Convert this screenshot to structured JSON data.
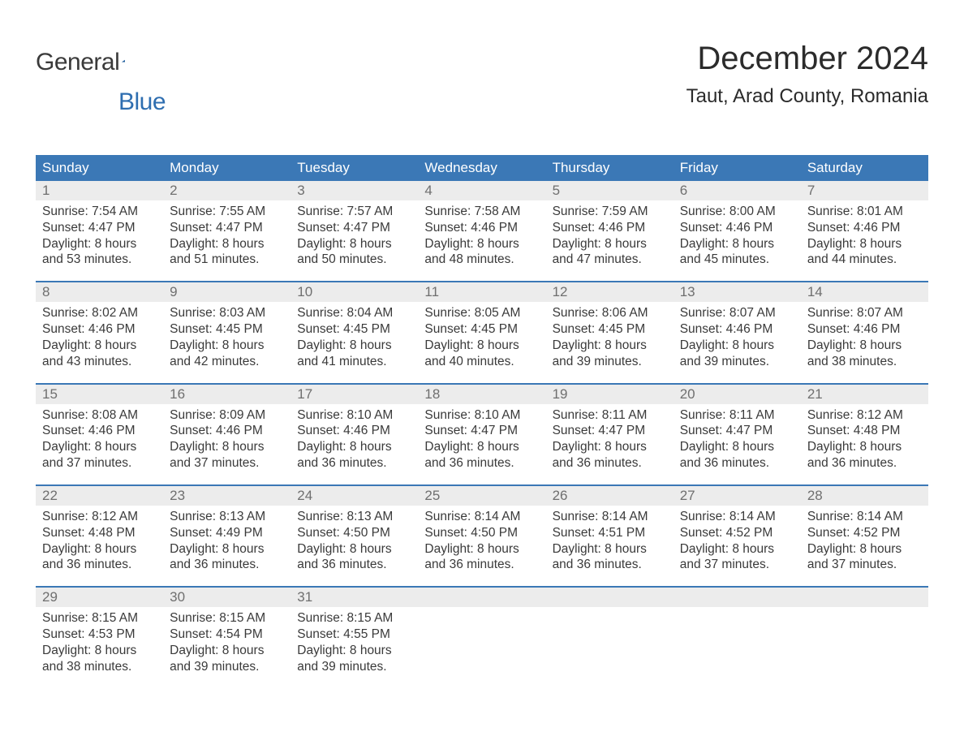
{
  "logo": {
    "part1": "General",
    "part2": "Blue",
    "flag_color": "#2e6eb0"
  },
  "title": {
    "month": "December 2024",
    "location": "Taut, Arad County, Romania"
  },
  "colors": {
    "header_bg": "#3b78b6",
    "header_text": "#ffffff",
    "daynum_bg": "#ececec",
    "daynum_text": "#6f6f6f",
    "body_text": "#3a3a3a",
    "week_border": "#3b78b6"
  },
  "weekdays": [
    "Sunday",
    "Monday",
    "Tuesday",
    "Wednesday",
    "Thursday",
    "Friday",
    "Saturday"
  ],
  "labels": {
    "sunrise": "Sunrise:",
    "sunset": "Sunset:",
    "daylight": "Daylight:"
  },
  "weeks": [
    [
      {
        "num": "1",
        "sunrise": "7:54 AM",
        "sunset": "4:47 PM",
        "dl1": "8 hours",
        "dl2": "and 53 minutes."
      },
      {
        "num": "2",
        "sunrise": "7:55 AM",
        "sunset": "4:47 PM",
        "dl1": "8 hours",
        "dl2": "and 51 minutes."
      },
      {
        "num": "3",
        "sunrise": "7:57 AM",
        "sunset": "4:47 PM",
        "dl1": "8 hours",
        "dl2": "and 50 minutes."
      },
      {
        "num": "4",
        "sunrise": "7:58 AM",
        "sunset": "4:46 PM",
        "dl1": "8 hours",
        "dl2": "and 48 minutes."
      },
      {
        "num": "5",
        "sunrise": "7:59 AM",
        "sunset": "4:46 PM",
        "dl1": "8 hours",
        "dl2": "and 47 minutes."
      },
      {
        "num": "6",
        "sunrise": "8:00 AM",
        "sunset": "4:46 PM",
        "dl1": "8 hours",
        "dl2": "and 45 minutes."
      },
      {
        "num": "7",
        "sunrise": "8:01 AM",
        "sunset": "4:46 PM",
        "dl1": "8 hours",
        "dl2": "and 44 minutes."
      }
    ],
    [
      {
        "num": "8",
        "sunrise": "8:02 AM",
        "sunset": "4:46 PM",
        "dl1": "8 hours",
        "dl2": "and 43 minutes."
      },
      {
        "num": "9",
        "sunrise": "8:03 AM",
        "sunset": "4:45 PM",
        "dl1": "8 hours",
        "dl2": "and 42 minutes."
      },
      {
        "num": "10",
        "sunrise": "8:04 AM",
        "sunset": "4:45 PM",
        "dl1": "8 hours",
        "dl2": "and 41 minutes."
      },
      {
        "num": "11",
        "sunrise": "8:05 AM",
        "sunset": "4:45 PM",
        "dl1": "8 hours",
        "dl2": "and 40 minutes."
      },
      {
        "num": "12",
        "sunrise": "8:06 AM",
        "sunset": "4:45 PM",
        "dl1": "8 hours",
        "dl2": "and 39 minutes."
      },
      {
        "num": "13",
        "sunrise": "8:07 AM",
        "sunset": "4:46 PM",
        "dl1": "8 hours",
        "dl2": "and 39 minutes."
      },
      {
        "num": "14",
        "sunrise": "8:07 AM",
        "sunset": "4:46 PM",
        "dl1": "8 hours",
        "dl2": "and 38 minutes."
      }
    ],
    [
      {
        "num": "15",
        "sunrise": "8:08 AM",
        "sunset": "4:46 PM",
        "dl1": "8 hours",
        "dl2": "and 37 minutes."
      },
      {
        "num": "16",
        "sunrise": "8:09 AM",
        "sunset": "4:46 PM",
        "dl1": "8 hours",
        "dl2": "and 37 minutes."
      },
      {
        "num": "17",
        "sunrise": "8:10 AM",
        "sunset": "4:46 PM",
        "dl1": "8 hours",
        "dl2": "and 36 minutes."
      },
      {
        "num": "18",
        "sunrise": "8:10 AM",
        "sunset": "4:47 PM",
        "dl1": "8 hours",
        "dl2": "and 36 minutes."
      },
      {
        "num": "19",
        "sunrise": "8:11 AM",
        "sunset": "4:47 PM",
        "dl1": "8 hours",
        "dl2": "and 36 minutes."
      },
      {
        "num": "20",
        "sunrise": "8:11 AM",
        "sunset": "4:47 PM",
        "dl1": "8 hours",
        "dl2": "and 36 minutes."
      },
      {
        "num": "21",
        "sunrise": "8:12 AM",
        "sunset": "4:48 PM",
        "dl1": "8 hours",
        "dl2": "and 36 minutes."
      }
    ],
    [
      {
        "num": "22",
        "sunrise": "8:12 AM",
        "sunset": "4:48 PM",
        "dl1": "8 hours",
        "dl2": "and 36 minutes."
      },
      {
        "num": "23",
        "sunrise": "8:13 AM",
        "sunset": "4:49 PM",
        "dl1": "8 hours",
        "dl2": "and 36 minutes."
      },
      {
        "num": "24",
        "sunrise": "8:13 AM",
        "sunset": "4:50 PM",
        "dl1": "8 hours",
        "dl2": "and 36 minutes."
      },
      {
        "num": "25",
        "sunrise": "8:14 AM",
        "sunset": "4:50 PM",
        "dl1": "8 hours",
        "dl2": "and 36 minutes."
      },
      {
        "num": "26",
        "sunrise": "8:14 AM",
        "sunset": "4:51 PM",
        "dl1": "8 hours",
        "dl2": "and 36 minutes."
      },
      {
        "num": "27",
        "sunrise": "8:14 AM",
        "sunset": "4:52 PM",
        "dl1": "8 hours",
        "dl2": "and 37 minutes."
      },
      {
        "num": "28",
        "sunrise": "8:14 AM",
        "sunset": "4:52 PM",
        "dl1": "8 hours",
        "dl2": "and 37 minutes."
      }
    ],
    [
      {
        "num": "29",
        "sunrise": "8:15 AM",
        "sunset": "4:53 PM",
        "dl1": "8 hours",
        "dl2": "and 38 minutes."
      },
      {
        "num": "30",
        "sunrise": "8:15 AM",
        "sunset": "4:54 PM",
        "dl1": "8 hours",
        "dl2": "and 39 minutes."
      },
      {
        "num": "31",
        "sunrise": "8:15 AM",
        "sunset": "4:55 PM",
        "dl1": "8 hours",
        "dl2": "and 39 minutes."
      },
      null,
      null,
      null,
      null
    ]
  ]
}
